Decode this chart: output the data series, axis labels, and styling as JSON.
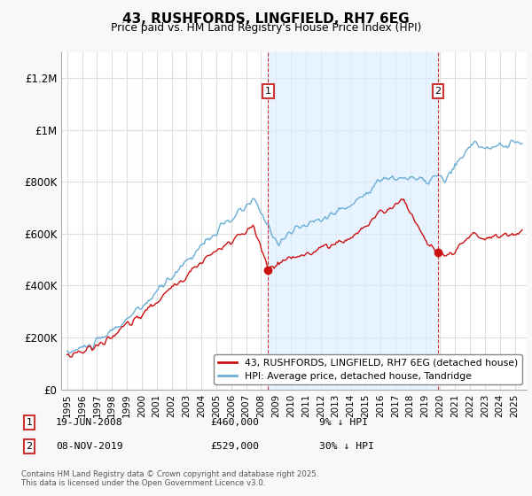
{
  "title": "43, RUSHFORDS, LINGFIELD, RH7 6EG",
  "subtitle": "Price paid vs. HM Land Registry's House Price Index (HPI)",
  "hpi_label": "HPI: Average price, detached house, Tandridge",
  "price_label": "43, RUSHFORDS, LINGFIELD, RH7 6EG (detached house)",
  "transaction1": {
    "date": "19-JUN-2008",
    "price": 460000,
    "pct": "9% ↓ HPI",
    "label": "1"
  },
  "transaction2": {
    "date": "08-NOV-2019",
    "price": 529000,
    "pct": "30% ↓ HPI",
    "label": "2"
  },
  "copyright": "Contains HM Land Registry data © Crown copyright and database right 2025.\nThis data is licensed under the Open Government Licence v3.0.",
  "ylim": [
    0,
    1300000
  ],
  "yticks": [
    0,
    200000,
    400000,
    600000,
    800000,
    1000000,
    1200000
  ],
  "ytick_labels": [
    "£0",
    "£200K",
    "£400K",
    "£600K",
    "£800K",
    "£1M",
    "£1.2M"
  ],
  "hpi_color": "#6aaed6",
  "price_color": "#cc1111",
  "vline_color": "#cc3333",
  "plot_bg": "#ffffff",
  "fig_bg": "#f8f8f8",
  "grid_color": "#dddddd",
  "shade_color": "#ddeeff",
  "transaction1_x": 2008.47,
  "transaction2_x": 2019.85,
  "xlim_left": 1994.6,
  "xlim_right": 2025.8
}
